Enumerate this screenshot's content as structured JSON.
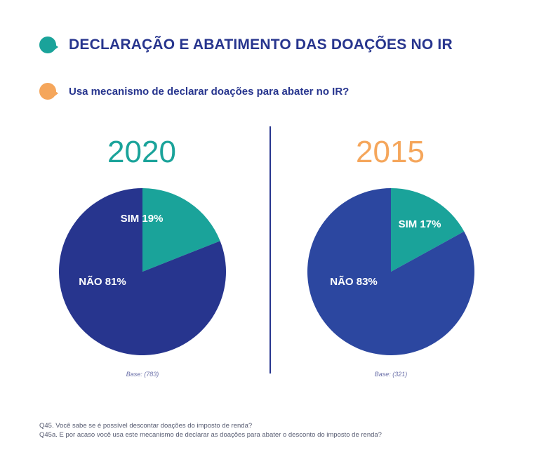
{
  "header": {
    "title": "DECLARAÇÃO E ABATIMENTO DAS DOAÇÕES NO IR",
    "subtitle": "Usa mecanismo de declarar doações para abater no IR?"
  },
  "colors": {
    "sim": "#1aa39a",
    "nao_2020": "#27358e",
    "nao_2015": "#2c47a0",
    "year_2020": "#1aa39a",
    "year_2015": "#f5a65b",
    "title": "#27358e"
  },
  "chart_data": [
    {
      "type": "pie",
      "title": "2020",
      "slices": [
        {
          "label": "SIM 19%",
          "category": "SIM",
          "value": 19
        },
        {
          "label": "NÃO 81%",
          "category": "NÃO",
          "value": 81
        }
      ],
      "base": "Base: (783)"
    },
    {
      "type": "pie",
      "title": "2015",
      "slices": [
        {
          "label": "SIM 17%",
          "category": "SIM",
          "value": 17
        },
        {
          "label": "NÃO 83%",
          "category": "NÃO",
          "value": 83
        }
      ],
      "base": "Base: (321)"
    }
  ],
  "footnotes": [
    "Q45. Você sabe se é possível descontar doações do imposto de renda?",
    "Q45a. E por acaso você usa este mecanismo de declarar as doações para abater o desconto do imposto de renda?"
  ]
}
